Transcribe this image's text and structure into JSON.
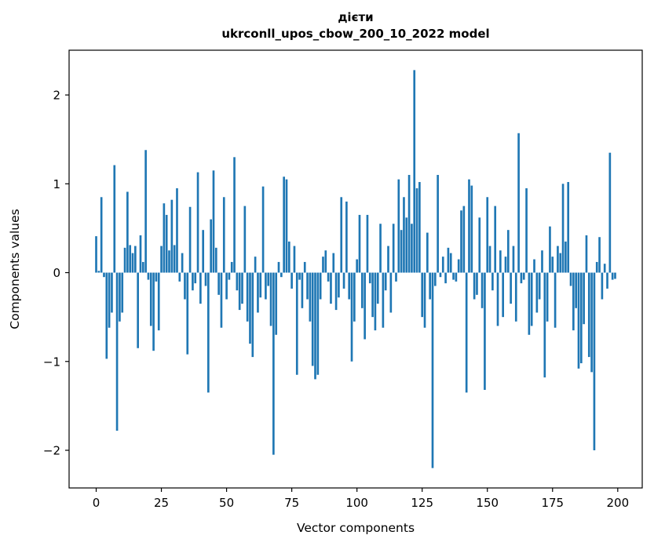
{
  "figure": {
    "background": "#ffffff"
  },
  "chart_data": {
    "type": "bar",
    "title": "дієти",
    "subtitle": "ukrconll_upos_cbow_200_10_2022 model",
    "xlabel": "Vector components",
    "ylabel": "Components values",
    "bar_color": "#1f77b4",
    "bar_width": 0.8,
    "xlim": [
      -10.39,
      209.39
    ],
    "ylim": [
      -2.424,
      2.504
    ],
    "xticks": [
      0,
      25,
      50,
      75,
      100,
      125,
      150,
      175,
      200
    ],
    "yticks": [
      -2,
      -1,
      0,
      1,
      2
    ],
    "grid": false,
    "legend": null,
    "x_is_index": true,
    "values": [
      0.41,
      0.02,
      0.85,
      -0.05,
      -0.97,
      -0.62,
      -0.45,
      1.21,
      -1.78,
      -0.55,
      -0.45,
      0.28,
      0.91,
      0.31,
      0.22,
      0.3,
      -0.85,
      0.42,
      0.12,
      1.38,
      -0.08,
      -0.6,
      -0.88,
      -0.1,
      -0.65,
      0.3,
      0.78,
      0.65,
      0.25,
      0.82,
      0.31,
      0.95,
      -0.1,
      0.22,
      -0.3,
      -0.92,
      0.74,
      -0.2,
      -0.12,
      1.13,
      -0.35,
      0.48,
      -0.15,
      -1.35,
      0.6,
      1.15,
      0.28,
      -0.25,
      -0.62,
      0.85,
      -0.3,
      -0.08,
      0.12,
      1.3,
      -0.2,
      -0.42,
      -0.35,
      0.75,
      -0.55,
      -0.8,
      -0.95,
      0.18,
      -0.45,
      -0.28,
      0.97,
      -0.3,
      -0.15,
      -0.6,
      -2.05,
      -0.7,
      0.12,
      -0.05,
      1.08,
      1.05,
      0.35,
      -0.18,
      0.3,
      -1.15,
      -0.08,
      -0.4,
      0.12,
      -0.3,
      -0.55,
      -1.05,
      -1.2,
      -1.15,
      -0.3,
      0.18,
      0.25,
      -0.1,
      -0.35,
      0.22,
      -0.42,
      -0.28,
      0.85,
      -0.18,
      0.8,
      -0.3,
      -1.0,
      -0.55,
      0.15,
      0.65,
      -0.4,
      -0.75,
      0.65,
      -0.12,
      -0.5,
      -0.65,
      -0.35,
      0.55,
      -0.62,
      -0.2,
      0.3,
      -0.45,
      0.55,
      -0.1,
      1.05,
      0.48,
      0.85,
      0.62,
      1.1,
      0.55,
      2.28,
      0.95,
      1.02,
      -0.5,
      -0.62,
      0.45,
      -0.3,
      -2.2,
      -0.15,
      1.1,
      -0.05,
      0.18,
      -0.12,
      0.28,
      0.22,
      -0.08,
      -0.1,
      0.15,
      0.7,
      0.75,
      -1.35,
      1.05,
      0.98,
      -0.3,
      -0.25,
      0.62,
      -0.4,
      -1.32,
      0.85,
      0.3,
      -0.2,
      0.75,
      -0.6,
      0.25,
      -0.5,
      0.18,
      0.48,
      -0.35,
      0.3,
      -0.55,
      1.57,
      -0.12,
      -0.08,
      0.95,
      -0.7,
      -0.6,
      0.15,
      -0.45,
      -0.3,
      0.25,
      -1.18,
      -0.55,
      0.52,
      0.18,
      -0.62,
      0.3,
      0.22,
      1.0,
      0.35,
      1.02,
      -0.15,
      -0.65,
      -0.4,
      -1.08,
      -1.02,
      -0.58,
      0.42,
      -0.95,
      -1.12,
      -2.0,
      0.12,
      0.4,
      -0.3,
      0.1,
      -0.18,
      1.35,
      -0.08,
      -0.07
    ]
  }
}
